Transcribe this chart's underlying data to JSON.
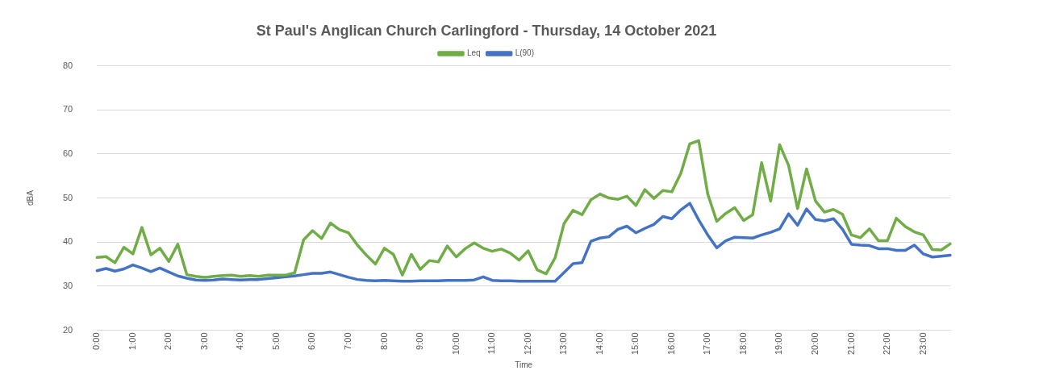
{
  "chart_data": {
    "type": "line",
    "title": "St Paul's Anglican Church Carlingford - Thursday, 14 October 2021",
    "xlabel": "Time",
    "ylabel": "dBA",
    "categories": [
      "0:00",
      null,
      null,
      null,
      "1:00",
      null,
      null,
      null,
      "2:00",
      null,
      null,
      null,
      "3:00",
      null,
      null,
      null,
      "4:00",
      null,
      null,
      null,
      "5:00",
      null,
      null,
      null,
      "6:00",
      null,
      null,
      null,
      "7:00",
      null,
      null,
      null,
      "8:00",
      null,
      null,
      null,
      "9:00",
      null,
      null,
      null,
      "10:00",
      null,
      null,
      null,
      "11:00",
      null,
      null,
      null,
      "12:00",
      null,
      null,
      null,
      "13:00",
      null,
      null,
      null,
      "14:00",
      null,
      null,
      null,
      "15:00",
      null,
      null,
      null,
      "16:00",
      null,
      null,
      null,
      "17:00",
      null,
      null,
      null,
      "18:00",
      null,
      null,
      null,
      "19:00",
      null,
      null,
      null,
      "20:00",
      null,
      null,
      null,
      "21:00",
      null,
      null,
      null,
      "22:00",
      null,
      null,
      null,
      "23:00",
      null,
      null,
      null
    ],
    "series": [
      {
        "name": "Leq",
        "color": "#70ad47",
        "values": [
          36.5,
          36.7,
          35.3,
          38.8,
          37.3,
          43.3,
          37.1,
          38.6,
          35.6,
          39.5,
          32.6,
          32.2,
          32.0,
          32.2,
          32.4,
          32.5,
          32.2,
          32.4,
          32.2,
          32.5,
          32.5,
          32.5,
          33.0,
          40.5,
          42.6,
          40.8,
          44.3,
          42.8,
          42.1,
          39.3,
          37.0,
          35.0,
          38.6,
          37.2,
          32.5,
          37.2,
          33.8,
          35.8,
          35.5,
          39.1,
          36.6,
          38.5,
          39.8,
          38.6,
          37.9,
          38.4,
          37.5,
          35.9,
          38.0,
          33.7,
          32.8,
          36.4,
          44.2,
          47.2,
          46.2,
          49.6,
          50.9,
          50.0,
          49.7,
          50.4,
          48.3,
          51.9,
          49.9,
          51.7,
          51.4,
          55.6,
          62.3,
          63.0,
          50.9,
          44.7,
          46.5,
          47.8,
          44.9,
          46.2,
          58.0,
          49.3,
          62.1,
          57.4,
          47.6,
          56.6,
          49.3,
          46.8,
          47.4,
          46.3,
          41.6,
          41.0,
          43.0,
          40.3,
          40.3,
          45.4,
          43.5,
          42.3,
          41.6,
          38.3,
          38.2,
          39.6
        ]
      },
      {
        "name": "L(90)",
        "color": "#4472c4",
        "values": [
          33.5,
          34.0,
          33.4,
          33.9,
          34.8,
          34.1,
          33.3,
          34.1,
          33.2,
          32.3,
          31.8,
          31.4,
          31.3,
          31.4,
          31.6,
          31.5,
          31.4,
          31.5,
          31.5,
          31.7,
          31.9,
          32.1,
          32.3,
          32.6,
          32.9,
          32.9,
          33.2,
          32.6,
          32.0,
          31.5,
          31.3,
          31.2,
          31.3,
          31.2,
          31.1,
          31.1,
          31.2,
          31.2,
          31.2,
          31.3,
          31.3,
          31.3,
          31.4,
          32.1,
          31.3,
          31.2,
          31.2,
          31.1,
          31.1,
          31.1,
          31.1,
          31.1,
          33.1,
          35.1,
          35.3,
          40.2,
          40.9,
          41.2,
          42.9,
          43.6,
          42.1,
          43.1,
          44.0,
          45.8,
          45.3,
          47.3,
          48.8,
          45.0,
          41.6,
          38.7,
          40.3,
          41.1,
          41.0,
          40.9,
          41.6,
          42.2,
          43.0,
          46.4,
          43.8,
          47.5,
          45.1,
          44.8,
          45.3,
          42.9,
          39.5,
          39.3,
          39.2,
          38.5,
          38.5,
          38.1,
          38.1,
          39.3,
          37.3,
          36.6,
          36.8,
          37.0
        ]
      }
    ],
    "ylim": [
      20,
      80
    ],
    "yticks": [
      20,
      30,
      40,
      50,
      60,
      70,
      80
    ],
    "grid": "y",
    "legend": "top",
    "marker": "none",
    "line_style": "solid"
  }
}
